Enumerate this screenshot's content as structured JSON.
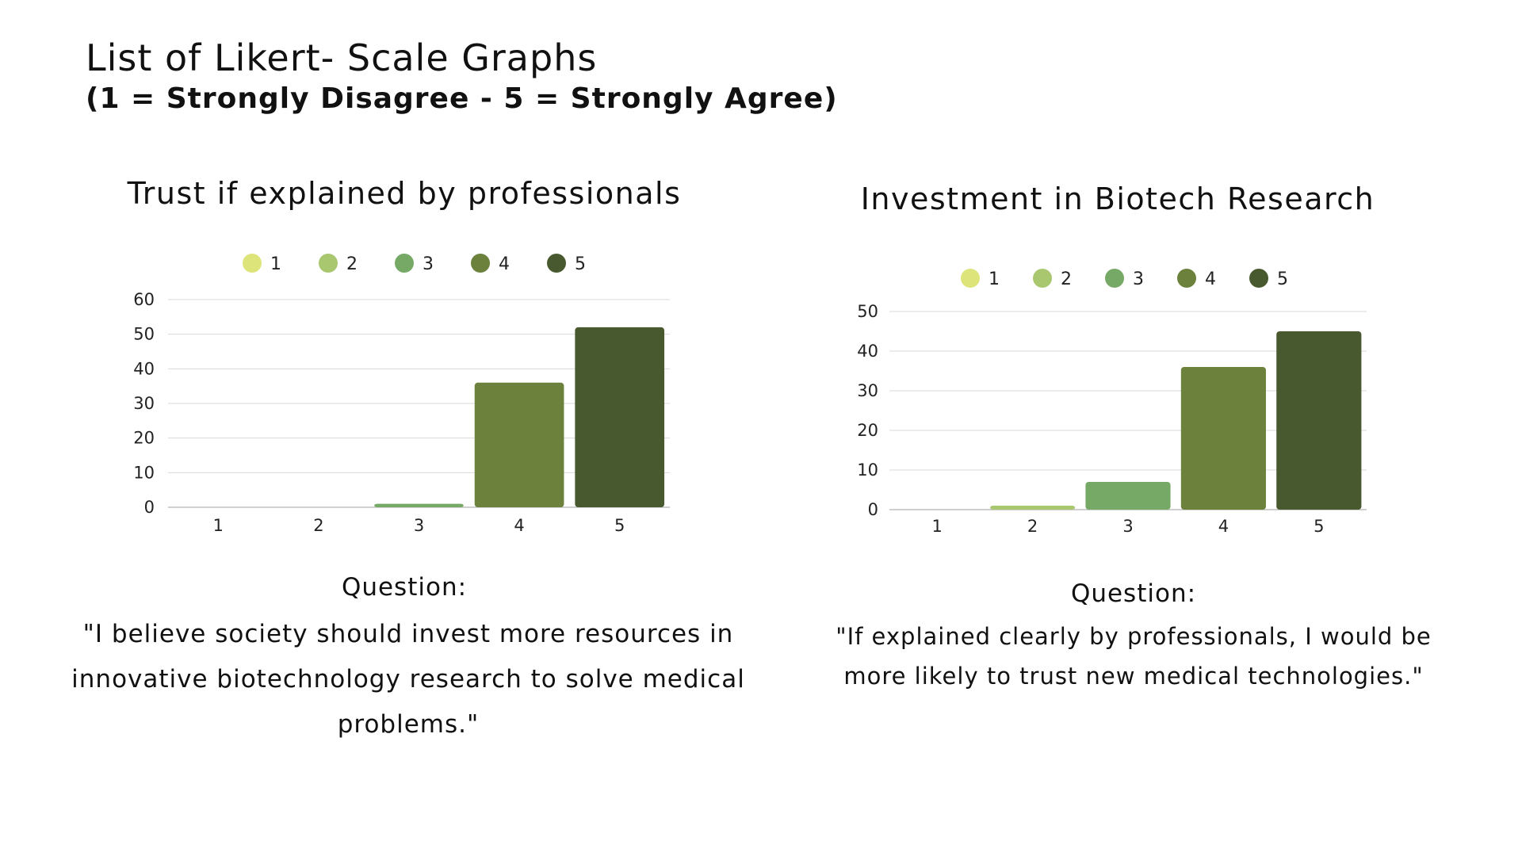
{
  "header": {
    "title": "List of Likert- Scale Graphs",
    "subtitle": "(1 = Strongly Disagree - 5 = Strongly Agree)"
  },
  "colors": {
    "1": "#dde57a",
    "2": "#a9c76e",
    "3": "#76a965",
    "4": "#6b813c",
    "5": "#48592f",
    "gridline": "#d9d9d9",
    "baseline": "#bfbfbf"
  },
  "chart_data": [
    {
      "type": "bar",
      "title": "Trust if explained by professionals",
      "categories": [
        "1",
        "2",
        "3",
        "4",
        "5"
      ],
      "values": [
        0,
        0,
        1,
        36,
        52
      ],
      "ylim": [
        0,
        60
      ],
      "yticks": [
        0,
        10,
        20,
        30,
        40,
        50,
        60
      ],
      "xlabel": "",
      "ylabel": "",
      "legend": [
        "1",
        "2",
        "3",
        "4",
        "5"
      ],
      "legend_position": "top",
      "grid": true,
      "question_label": "Question:",
      "question_text": "\"I believe society should invest more resources in innovative biotechnology research to solve medical problems.\""
    },
    {
      "type": "bar",
      "title": "Investment in Biotech Research",
      "categories": [
        "1",
        "2",
        "3",
        "4",
        "5"
      ],
      "values": [
        0,
        1,
        7,
        36,
        45
      ],
      "ylim": [
        0,
        50
      ],
      "yticks": [
        0,
        10,
        20,
        30,
        40,
        50
      ],
      "xlabel": "",
      "ylabel": "",
      "legend": [
        "1",
        "2",
        "3",
        "4",
        "5"
      ],
      "legend_position": "top",
      "grid": true,
      "question_label": "Question:",
      "question_text": "\"If explained clearly by professionals, I would be more likely to trust new medical technologies.\""
    }
  ]
}
